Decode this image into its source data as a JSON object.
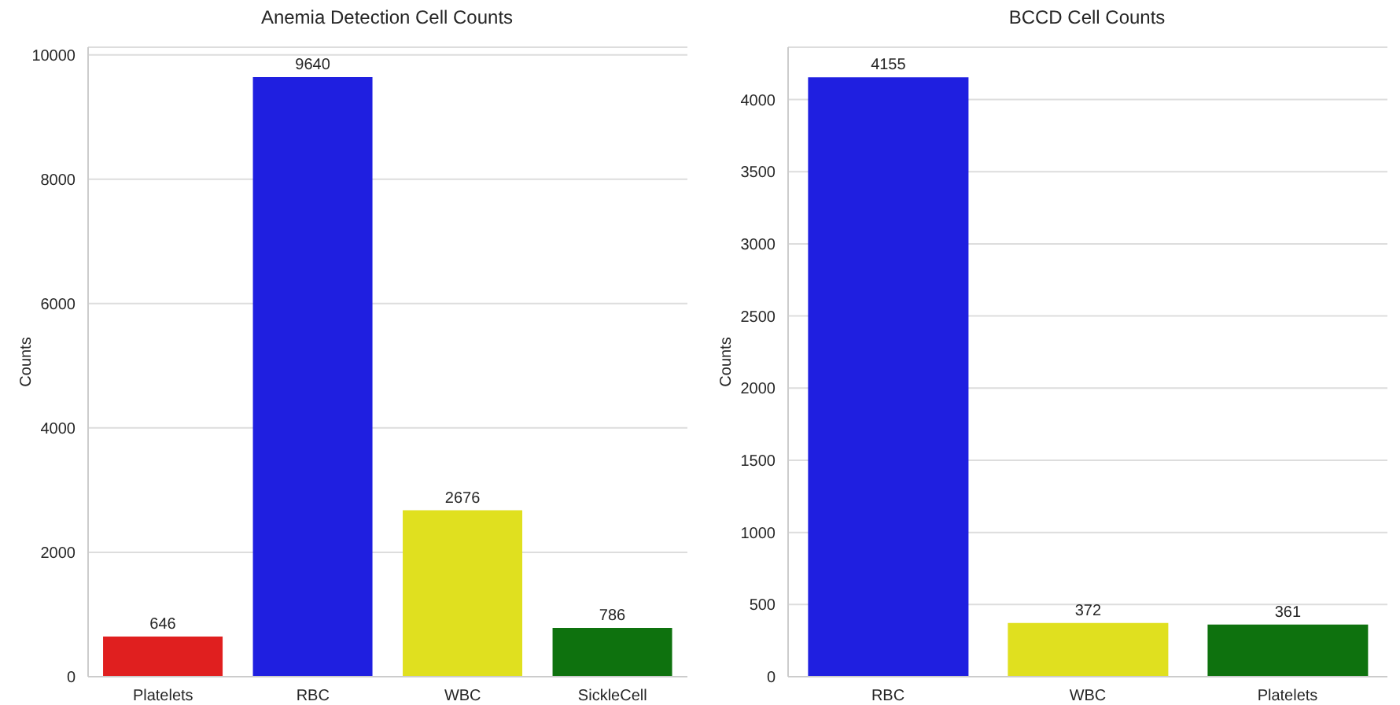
{
  "chart_data": [
    {
      "type": "bar",
      "title": "Anemia Detection Cell Counts",
      "ylabel": "Counts",
      "categories": [
        "Platelets",
        "RBC",
        "WBC",
        "SickleCell"
      ],
      "values": [
        646,
        9640,
        2676,
        786
      ],
      "colors": [
        "#e01f1f",
        "#1f1fe0",
        "#e0e01f",
        "#0e720e"
      ],
      "ylim": [
        0,
        10122
      ],
      "yticks": [
        0,
        2000,
        4000,
        6000,
        8000,
        10000
      ],
      "grid": "y",
      "data_labels": true
    },
    {
      "type": "bar",
      "title": "BCCD Cell Counts",
      "ylabel": "Counts",
      "categories": [
        "RBC",
        "WBC",
        "Platelets"
      ],
      "values": [
        4155,
        372,
        361
      ],
      "colors": [
        "#1f1fe0",
        "#e0e01f",
        "#0e720e"
      ],
      "ylim": [
        0,
        4363
      ],
      "yticks": [
        0,
        500,
        1000,
        1500,
        2000,
        2500,
        3000,
        3500,
        4000
      ],
      "grid": "y",
      "data_labels": true
    }
  ]
}
